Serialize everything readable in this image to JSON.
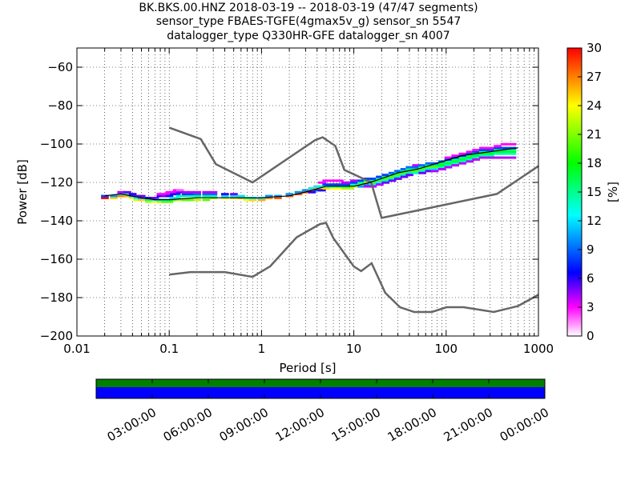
{
  "chart_data": {
    "type": "heatmap",
    "title_lines": [
      "BK.BKS.00.HNZ   2018-03-19 -- 2018-03-19  (47/47 segments)",
      "sensor_type FBAES-TGFE(4gmax5v_g) sensor_sn 5547",
      "datalogger_type Q330HR-GFE datalogger_sn 4007"
    ],
    "xlabel": "Period [s]",
    "ylabel": "Power [dB]",
    "x_scale": "log",
    "xlim": [
      0.01,
      1000
    ],
    "ylim": [
      -200,
      -50
    ],
    "x_ticks": [
      {
        "value": 0.01,
        "label": "0.01"
      },
      {
        "value": 0.1,
        "label": "0.1"
      },
      {
        "value": 1,
        "label": "1"
      },
      {
        "value": 10,
        "label": "10"
      },
      {
        "value": 100,
        "label": "100"
      },
      {
        "value": 1000,
        "label": "1000"
      }
    ],
    "y_ticks": [
      {
        "value": -60,
        "label": "−60"
      },
      {
        "value": -80,
        "label": "−80"
      },
      {
        "value": -100,
        "label": "−100"
      },
      {
        "value": -120,
        "label": "−120"
      },
      {
        "value": -140,
        "label": "−140"
      },
      {
        "value": -160,
        "label": "−160"
      },
      {
        "value": -180,
        "label": "−180"
      },
      {
        "value": -200,
        "label": "−200"
      }
    ],
    "grid": "dotted",
    "colorbar": {
      "label": "[%]",
      "range": [
        0,
        30
      ],
      "ticks": [
        {
          "value": 0,
          "label": "0"
        },
        {
          "value": 3,
          "label": "3"
        },
        {
          "value": 6,
          "label": "6"
        },
        {
          "value": 9,
          "label": "9"
        },
        {
          "value": 12,
          "label": "12"
        },
        {
          "value": 15,
          "label": "15"
        },
        {
          "value": 18,
          "label": "18"
        },
        {
          "value": 21,
          "label": "21"
        },
        {
          "value": 24,
          "label": "24"
        },
        {
          "value": 27,
          "label": "27"
        },
        {
          "value": 30,
          "label": "30"
        }
      ],
      "colors": [
        "#ffffff",
        "#ff00ff",
        "#0000ff",
        "#00ffff",
        "#00ff00",
        "#ffff00",
        "#ff0000"
      ]
    },
    "noise_model_high": [
      [
        0.1,
        -91.5
      ],
      [
        0.22,
        -97.4
      ],
      [
        0.32,
        -110.5
      ],
      [
        0.8,
        -120
      ],
      [
        3.8,
        -98
      ],
      [
        4.6,
        -96.5
      ],
      [
        6.3,
        -101
      ],
      [
        7.9,
        -113.5
      ],
      [
        15.4,
        -120
      ],
      [
        20,
        -138.5
      ],
      [
        354.8,
        -126
      ],
      [
        1000,
        -111.5
      ]
    ],
    "noise_model_low": [
      [
        0.1,
        -168
      ],
      [
        0.17,
        -166.7
      ],
      [
        0.4,
        -166.7
      ],
      [
        0.8,
        -169.2
      ],
      [
        1.24,
        -163.7
      ],
      [
        2.4,
        -148.6
      ],
      [
        4.3,
        -141.7
      ],
      [
        5,
        -141.1
      ],
      [
        6,
        -149
      ],
      [
        10,
        -163.8
      ],
      [
        12,
        -166.2
      ],
      [
        15.6,
        -162.1
      ],
      [
        21.9,
        -177.5
      ],
      [
        31.6,
        -185
      ],
      [
        45,
        -187.5
      ],
      [
        70,
        -187.5
      ],
      [
        101,
        -185
      ],
      [
        154,
        -185
      ],
      [
        328,
        -187.5
      ],
      [
        600,
        -184.4
      ],
      [
        1000,
        -178.5
      ]
    ],
    "psd_bins": [
      [
        0.02,
        -128,
        30
      ],
      [
        0.02,
        -127,
        8
      ],
      [
        0.025,
        -128,
        25
      ],
      [
        0.025,
        -127,
        10
      ],
      [
        0.03,
        -127,
        27
      ],
      [
        0.03,
        -126,
        12
      ],
      [
        0.03,
        -125,
        4
      ],
      [
        0.035,
        -127,
        26
      ],
      [
        0.035,
        -126,
        14
      ],
      [
        0.035,
        -125,
        5
      ],
      [
        0.04,
        -128,
        24
      ],
      [
        0.04,
        -127,
        10
      ],
      [
        0.04,
        -126,
        6
      ],
      [
        0.045,
        -129,
        23
      ],
      [
        0.045,
        -128,
        12
      ],
      [
        0.045,
        -127,
        5
      ],
      [
        0.05,
        -129,
        25
      ],
      [
        0.05,
        -128,
        10
      ],
      [
        0.05,
        -127,
        5
      ],
      [
        0.06,
        -130,
        22
      ],
      [
        0.06,
        -129,
        15
      ],
      [
        0.06,
        -128,
        6
      ],
      [
        0.07,
        -130,
        24
      ],
      [
        0.07,
        -129,
        12
      ],
      [
        0.07,
        -128,
        5
      ],
      [
        0.08,
        -130,
        22
      ],
      [
        0.08,
        -129,
        12
      ],
      [
        0.08,
        -127,
        6
      ],
      [
        0.08,
        -126,
        3
      ],
      [
        0.09,
        -130,
        20
      ],
      [
        0.09,
        -129,
        14
      ],
      [
        0.09,
        -127,
        5
      ],
      [
        0.09,
        -126,
        3
      ],
      [
        0.1,
        -130,
        20
      ],
      [
        0.1,
        -129,
        12
      ],
      [
        0.1,
        -127,
        6
      ],
      [
        0.1,
        -125,
        3
      ],
      [
        0.11,
        -129,
        18
      ],
      [
        0.11,
        -128,
        12
      ],
      [
        0.11,
        -126,
        6
      ],
      [
        0.11,
        -125,
        3
      ],
      [
        0.12,
        -129,
        20
      ],
      [
        0.12,
        -128,
        12
      ],
      [
        0.12,
        -126,
        6
      ],
      [
        0.12,
        -124,
        3
      ],
      [
        0.13,
        -129,
        22
      ],
      [
        0.13,
        -127,
        14
      ],
      [
        0.13,
        -125,
        5
      ],
      [
        0.13,
        -124,
        2
      ],
      [
        0.15,
        -129,
        20
      ],
      [
        0.15,
        -127,
        15
      ],
      [
        0.15,
        -126,
        8
      ],
      [
        0.15,
        -125,
        4
      ],
      [
        0.17,
        -129,
        20
      ],
      [
        0.17,
        -127,
        14
      ],
      [
        0.17,
        -126,
        8
      ],
      [
        0.17,
        -125,
        4
      ],
      [
        0.2,
        -129,
        22
      ],
      [
        0.2,
        -127,
        15
      ],
      [
        0.2,
        -126,
        9
      ],
      [
        0.2,
        -125,
        4
      ],
      [
        0.25,
        -129,
        20
      ],
      [
        0.25,
        -127,
        15
      ],
      [
        0.25,
        -126,
        9
      ],
      [
        0.25,
        -125,
        4
      ],
      [
        0.3,
        -128,
        22
      ],
      [
        0.3,
        -127,
        14
      ],
      [
        0.3,
        -126,
        9
      ],
      [
        0.3,
        -125,
        4
      ],
      [
        0.4,
        -128,
        24
      ],
      [
        0.4,
        -127,
        12
      ],
      [
        0.4,
        -126,
        6
      ],
      [
        0.5,
        -128,
        25
      ],
      [
        0.5,
        -127,
        12
      ],
      [
        0.5,
        -126,
        5
      ],
      [
        0.6,
        -128,
        26
      ],
      [
        0.6,
        -127,
        12
      ],
      [
        0.7,
        -129,
        24
      ],
      [
        0.7,
        -128,
        14
      ],
      [
        0.8,
        -129,
        25
      ],
      [
        0.8,
        -128,
        12
      ],
      [
        1,
        -129,
        26
      ],
      [
        1,
        -128,
        12
      ],
      [
        1.2,
        -128,
        27
      ],
      [
        1.2,
        -127,
        10
      ],
      [
        1.5,
        -128,
        28
      ],
      [
        1.5,
        -127,
        10
      ],
      [
        2,
        -127,
        28
      ],
      [
        2,
        -126,
        10
      ],
      [
        2.5,
        -126,
        28
      ],
      [
        2.5,
        -125,
        10
      ],
      [
        3,
        -125,
        28
      ],
      [
        3,
        -124,
        10
      ],
      [
        3.5,
        -124,
        27
      ],
      [
        3.5,
        -123,
        12
      ],
      [
        3.5,
        -125,
        6
      ],
      [
        4,
        -123,
        26
      ],
      [
        4,
        -122,
        12
      ],
      [
        4,
        -124,
        8
      ],
      [
        4.5,
        -123,
        25
      ],
      [
        4.5,
        -122,
        14
      ],
      [
        4.5,
        -124,
        6
      ],
      [
        4.5,
        -120,
        3
      ],
      [
        5,
        -123,
        25
      ],
      [
        5,
        -122,
        14
      ],
      [
        5,
        -121,
        8
      ],
      [
        5,
        -119,
        3
      ],
      [
        6,
        -123,
        24
      ],
      [
        6,
        -122,
        14
      ],
      [
        6,
        -121,
        8
      ],
      [
        6,
        -119,
        3
      ],
      [
        7,
        -123,
        24
      ],
      [
        7,
        -122,
        15
      ],
      [
        7,
        -121,
        8
      ],
      [
        7,
        -119,
        3
      ],
      [
        8,
        -123,
        22
      ],
      [
        8,
        -122,
        15
      ],
      [
        8,
        -121,
        8
      ],
      [
        8,
        -120,
        4
      ],
      [
        9,
        -123,
        22
      ],
      [
        9,
        -122,
        16
      ],
      [
        9,
        -121,
        8
      ],
      [
        9,
        -120,
        4
      ],
      [
        10,
        -122,
        22
      ],
      [
        10,
        -121,
        14
      ],
      [
        10,
        -120,
        8
      ],
      [
        10,
        -119,
        4
      ],
      [
        12,
        -121,
        22
      ],
      [
        12,
        -120,
        15
      ],
      [
        12,
        -119,
        8
      ],
      [
        12,
        -122,
        10
      ],
      [
        14,
        -120,
        22
      ],
      [
        14,
        -119,
        15
      ],
      [
        14,
        -118,
        8
      ],
      [
        14,
        -121,
        10
      ],
      [
        14,
        -122,
        4
      ],
      [
        16,
        -120,
        20
      ],
      [
        16,
        -119,
        15
      ],
      [
        16,
        -118,
        8
      ],
      [
        16,
        -121,
        12
      ],
      [
        16,
        -122,
        4
      ],
      [
        19,
        -119,
        20
      ],
      [
        19,
        -118,
        14
      ],
      [
        19,
        -117,
        8
      ],
      [
        19,
        -120,
        12
      ],
      [
        19,
        -121,
        4
      ],
      [
        22,
        -118,
        20
      ],
      [
        22,
        -117,
        15
      ],
      [
        22,
        -116,
        8
      ],
      [
        22,
        -119,
        14
      ],
      [
        22,
        -120,
        5
      ],
      [
        26,
        -117,
        20
      ],
      [
        26,
        -116,
        15
      ],
      [
        26,
        -115,
        9
      ],
      [
        26,
        -118,
        14
      ],
      [
        26,
        -119,
        5
      ],
      [
        30,
        -116,
        20
      ],
      [
        30,
        -115,
        15
      ],
      [
        30,
        -114,
        9
      ],
      [
        30,
        -117,
        14
      ],
      [
        30,
        -118,
        5
      ],
      [
        35,
        -115,
        20
      ],
      [
        35,
        -114,
        15
      ],
      [
        35,
        -113,
        9
      ],
      [
        35,
        -116,
        14
      ],
      [
        35,
        -117,
        5
      ],
      [
        40,
        -114,
        20
      ],
      [
        40,
        -113,
        15
      ],
      [
        40,
        -112,
        9
      ],
      [
        40,
        -115,
        14
      ],
      [
        40,
        -116,
        5
      ],
      [
        47,
        -114,
        20
      ],
      [
        47,
        -113,
        15
      ],
      [
        47,
        -112,
        9
      ],
      [
        47,
        -111,
        4
      ],
      [
        47,
        -115,
        14
      ],
      [
        55,
        -113,
        20
      ],
      [
        55,
        -112,
        15
      ],
      [
        55,
        -111,
        9
      ],
      [
        55,
        -114,
        14
      ],
      [
        55,
        -115,
        5
      ],
      [
        65,
        -112,
        20
      ],
      [
        65,
        -111,
        15
      ],
      [
        65,
        -110,
        9
      ],
      [
        65,
        -113,
        14
      ],
      [
        65,
        -114,
        5
      ],
      [
        75,
        -112,
        20
      ],
      [
        75,
        -111,
        16
      ],
      [
        75,
        -110,
        9
      ],
      [
        75,
        -113,
        12
      ],
      [
        75,
        -114,
        4
      ],
      [
        90,
        -111,
        18
      ],
      [
        90,
        -110,
        16
      ],
      [
        90,
        -109,
        9
      ],
      [
        90,
        -112,
        14
      ],
      [
        90,
        -113,
        4
      ],
      [
        105,
        -110,
        18
      ],
      [
        105,
        -109,
        14
      ],
      [
        105,
        -108,
        8
      ],
      [
        105,
        -107,
        3
      ],
      [
        105,
        -111,
        14
      ],
      [
        105,
        -112,
        4
      ],
      [
        125,
        -109,
        18
      ],
      [
        125,
        -108,
        15
      ],
      [
        125,
        -107,
        8
      ],
      [
        125,
        -106,
        3
      ],
      [
        125,
        -110,
        14
      ],
      [
        125,
        -111,
        4
      ],
      [
        150,
        -108,
        18
      ],
      [
        150,
        -107,
        15
      ],
      [
        150,
        -106,
        8
      ],
      [
        150,
        -105,
        3
      ],
      [
        150,
        -109,
        14
      ],
      [
        150,
        -110,
        4
      ],
      [
        180,
        -107,
        18
      ],
      [
        180,
        -106,
        15
      ],
      [
        180,
        -105,
        8
      ],
      [
        180,
        -104,
        3
      ],
      [
        180,
        -108,
        14
      ],
      [
        180,
        -109,
        4
      ],
      [
        210,
        -106,
        18
      ],
      [
        210,
        -105,
        15
      ],
      [
        210,
        -104,
        8
      ],
      [
        210,
        -103,
        3
      ],
      [
        210,
        -107,
        14
      ],
      [
        210,
        -108,
        4
      ],
      [
        250,
        -105,
        18
      ],
      [
        250,
        -104,
        15
      ],
      [
        250,
        -103,
        8
      ],
      [
        250,
        -102,
        3
      ],
      [
        250,
        -106,
        14
      ],
      [
        250,
        -107,
        4
      ],
      [
        300,
        -105,
        18
      ],
      [
        300,
        -104,
        15
      ],
      [
        300,
        -103,
        8
      ],
      [
        300,
        -102,
        3
      ],
      [
        300,
        -106,
        14
      ],
      [
        300,
        -107,
        4
      ],
      [
        360,
        -104,
        18
      ],
      [
        360,
        -103,
        15
      ],
      [
        360,
        -102,
        8
      ],
      [
        360,
        -101,
        3
      ],
      [
        360,
        -105,
        14
      ],
      [
        360,
        -107,
        4
      ],
      [
        430,
        -104,
        18
      ],
      [
        430,
        -103,
        15
      ],
      [
        430,
        -102,
        8
      ],
      [
        430,
        -100,
        3
      ],
      [
        430,
        -105,
        14
      ],
      [
        430,
        -107,
        4
      ],
      [
        520,
        -104,
        18
      ],
      [
        520,
        -103,
        15
      ],
      [
        520,
        -102,
        8
      ],
      [
        520,
        -100,
        3
      ],
      [
        520,
        -105,
        14
      ],
      [
        520,
        -107,
        4
      ]
    ],
    "mode_line": [
      [
        0.02,
        -127
      ],
      [
        0.03,
        -126
      ],
      [
        0.05,
        -128
      ],
      [
        0.07,
        -129
      ],
      [
        0.1,
        -129
      ],
      [
        0.2,
        -128
      ],
      [
        0.5,
        -128
      ],
      [
        1,
        -128
      ],
      [
        2,
        -127
      ],
      [
        3,
        -125
      ],
      [
        5,
        -122
      ],
      [
        10,
        -122
      ],
      [
        15,
        -120
      ],
      [
        20,
        -118
      ],
      [
        30,
        -115
      ],
      [
        50,
        -113
      ],
      [
        80,
        -110
      ],
      [
        150,
        -106
      ],
      [
        300,
        -104
      ],
      [
        600,
        -102
      ]
    ],
    "timeline": {
      "tick_labels": [
        "03:00:00",
        "06:00:00",
        "09:00:00",
        "12:00:00",
        "15:00:00",
        "18:00:00",
        "21:00:00",
        "00:00:00"
      ],
      "bars": [
        {
          "color": "#007f00",
          "start": 0,
          "end": 1
        },
        {
          "color": "#0000ff",
          "start": 0,
          "end": 1
        }
      ]
    }
  }
}
